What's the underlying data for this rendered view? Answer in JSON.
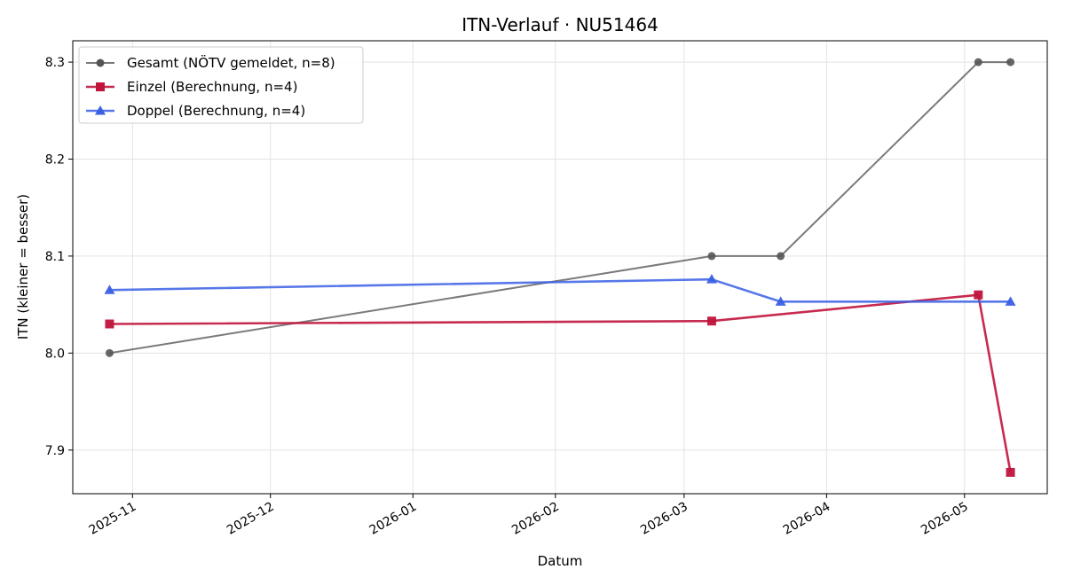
{
  "chart_data": {
    "type": "line",
    "title": "ITN-Verlauf · NU51464",
    "xlabel": "Datum",
    "ylabel": "ITN  (kleiner = besser)",
    "x_type": "date",
    "xlim": [
      "2025-10-19",
      "2026-05-19"
    ],
    "ylim": [
      7.855,
      8.322
    ],
    "x_ticks": [
      "2025-11-01",
      "2025-12-01",
      "2026-01-01",
      "2026-02-01",
      "2026-03-01",
      "2026-04-01",
      "2026-05-01"
    ],
    "x_tick_labels": [
      "2025-11",
      "2025-12",
      "2026-01",
      "2026-02",
      "2026-03",
      "2026-04",
      "2026-05"
    ],
    "y_ticks": [
      7.9,
      8.0,
      8.1,
      8.2,
      8.3
    ],
    "y_tick_labels": [
      "7.9",
      "8.0",
      "8.1",
      "8.2",
      "8.3"
    ],
    "grid": true,
    "legend_position": "top-left",
    "series": [
      {
        "name": "Gesamt (NÖTV gemeldet, n=8)",
        "color": "#555555",
        "marker": "circle",
        "x": [
          "2025-10-27",
          "2026-03-07",
          "2026-03-22",
          "2026-05-04",
          "2026-05-11"
        ],
        "values": [
          8.0,
          8.1,
          8.1,
          8.3,
          8.3
        ]
      },
      {
        "name": "Einzel (Berechnung, n=4)",
        "color": "#c0143c",
        "marker": "square",
        "x": [
          "2025-10-27",
          "2026-03-07",
          "2026-05-04",
          "2026-05-11"
        ],
        "values": [
          8.03,
          8.033,
          8.06,
          7.877
        ]
      },
      {
        "name": "Doppel (Berechnung, n=4)",
        "color": "#3a5fe5",
        "marker": "triangle",
        "x": [
          "2025-10-27",
          "2026-03-07",
          "2026-03-22",
          "2026-05-11"
        ],
        "values": [
          8.065,
          8.076,
          8.053,
          8.053
        ]
      }
    ]
  }
}
